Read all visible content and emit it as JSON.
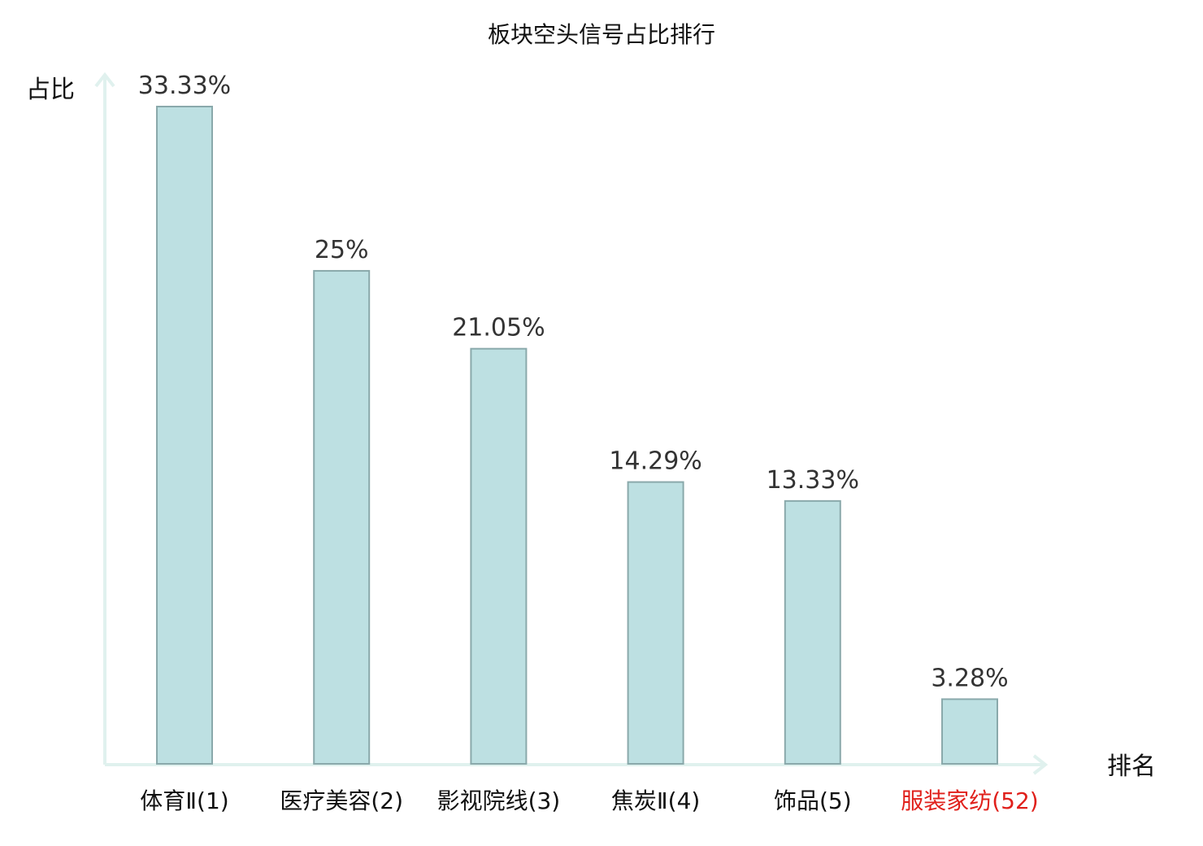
{
  "chart_data": {
    "type": "bar",
    "title": "板块空头信号占比排行",
    "ylabel": "占比",
    "xlabel": "排名",
    "ylim": [
      0,
      33.33
    ],
    "grid": false,
    "categories": [
      "体育Ⅱ(1)",
      "医疗美容(2)",
      "影视院线(3)",
      "焦炭Ⅱ(4)",
      "饰品(5)",
      "服装家纺(52)"
    ],
    "values": [
      33.33,
      25,
      21.05,
      14.29,
      13.33,
      3.28
    ],
    "value_labels": [
      "33.33%",
      "25%",
      "21.05%",
      "14.29%",
      "13.33%",
      "3.28%"
    ],
    "highlight_index": 5,
    "colors": {
      "bar_fill": "#bde0e2",
      "bar_stroke": "#8aa9ab",
      "axis": "#e0f1ee",
      "label": "#111111",
      "highlight_label": "#e0201b",
      "value_label": "#333333"
    }
  }
}
